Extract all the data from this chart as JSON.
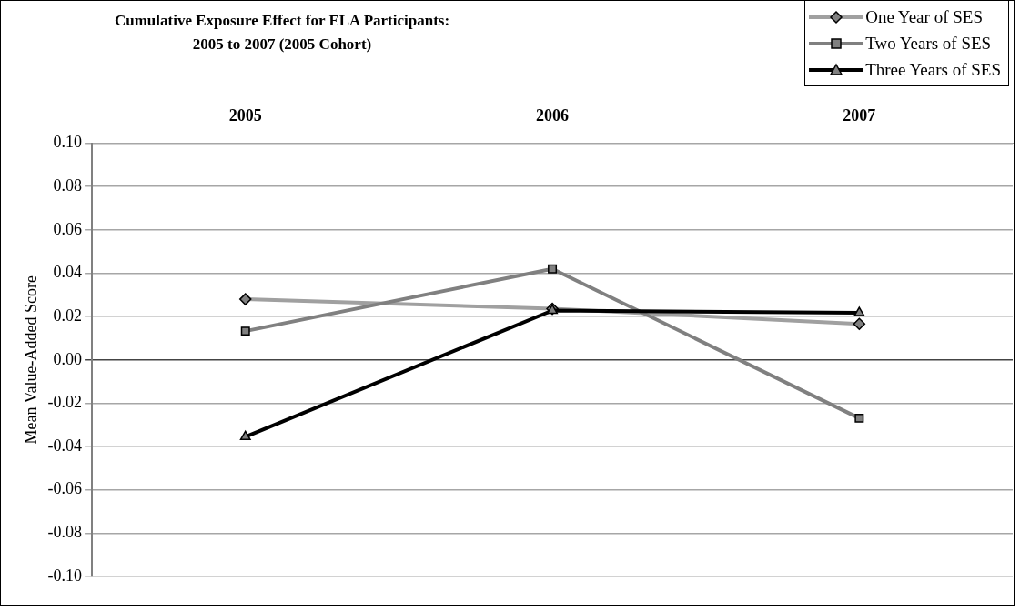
{
  "chart_data": {
    "type": "line",
    "title": "Cumulative Exposure Effect for ELA Participants:\n2005 to 2007 (2005 Cohort)",
    "ylabel": "Mean Value-Added Score",
    "categories": [
      "2005",
      "2006",
      "2007"
    ],
    "series": [
      {
        "name": "One Year of SES",
        "color": "#a0a0a0",
        "marker": "diamond",
        "values": [
          0.028,
          0.0236,
          0.0166
        ]
      },
      {
        "name": "Two Years of SES",
        "color": "#808080",
        "marker": "square",
        "values": [
          0.0133,
          0.042,
          -0.0269
        ]
      },
      {
        "name": "Three Years of SES",
        "color": "#000000",
        "marker": "triangle",
        "values": [
          -0.0355,
          0.0228,
          0.0217
        ]
      }
    ],
    "ylim": [
      -0.1,
      0.1
    ],
    "yticks": [
      {
        "value": -0.1,
        "label": "-0.10"
      },
      {
        "value": -0.08,
        "label": "-0.08"
      },
      {
        "value": -0.06,
        "label": "-0.06"
      },
      {
        "value": -0.04,
        "label": "-0.04"
      },
      {
        "value": -0.02,
        "label": "-0.02"
      },
      {
        "value": 0,
        "label": "0.00"
      },
      {
        "value": 0.02,
        "label": "0.02"
      },
      {
        "value": 0.04,
        "label": "0.04"
      },
      {
        "value": 0.06,
        "label": "0.06"
      },
      {
        "value": 0.08,
        "label": "0.08"
      },
      {
        "value": 0.1,
        "label": "0.10"
      }
    ],
    "grid": "y",
    "legend": "top right",
    "line_style": "solid"
  }
}
